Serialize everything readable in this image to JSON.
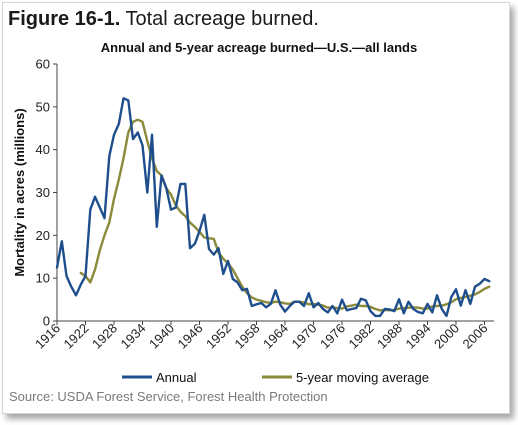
{
  "figure": {
    "number": "Figure 16-1.",
    "caption": "Total acreage burned."
  },
  "source": "Source: USDA Forest Service, Forest Health Protection",
  "chart_data": {
    "type": "line",
    "title": "Annual and 5-year acreage burned—U.S.—all lands",
    "xlabel": "",
    "ylabel": "Mortality in acres (millions)",
    "xlim": [
      1916,
      2008
    ],
    "ylim": [
      0,
      60
    ],
    "y_ticks": [
      0,
      10,
      20,
      30,
      40,
      50,
      60
    ],
    "x_ticks": [
      "1916",
      "1922",
      "1928",
      "1934",
      "1940",
      "1946",
      "1952",
      "1958",
      "1964",
      "1970",
      "1976",
      "1982",
      "1988",
      "1994",
      "2000",
      "2006"
    ],
    "grid": false,
    "legend": "bottom",
    "series": [
      {
        "name": "Annual",
        "color": "#1f4e8c",
        "x": [
          1916,
          1917,
          1918,
          1919,
          1920,
          1921,
          1922,
          1923,
          1924,
          1925,
          1926,
          1927,
          1928,
          1929,
          1930,
          1931,
          1932,
          1933,
          1934,
          1935,
          1936,
          1937,
          1938,
          1939,
          1940,
          1941,
          1942,
          1943,
          1944,
          1945,
          1946,
          1947,
          1948,
          1949,
          1950,
          1951,
          1952,
          1953,
          1954,
          1955,
          1956,
          1957,
          1958,
          1959,
          1960,
          1961,
          1962,
          1963,
          1964,
          1965,
          1966,
          1967,
          1968,
          1969,
          1970,
          1971,
          1972,
          1973,
          1974,
          1975,
          1976,
          1977,
          1978,
          1979,
          1980,
          1981,
          1982,
          1983,
          1984,
          1985,
          1986,
          1987,
          1988,
          1989,
          1990,
          1991,
          1992,
          1993,
          1994,
          1995,
          1996,
          1997,
          1998,
          1999,
          2000,
          2001,
          2002,
          2003,
          2004,
          2005,
          2006,
          2007
        ],
        "values": [
          12.5,
          18.6,
          10.5,
          8,
          6,
          8.5,
          10.5,
          26,
          29,
          26.5,
          24,
          38.5,
          43.5,
          46,
          52,
          51.5,
          42.5,
          44,
          41,
          30,
          43.5,
          22,
          34,
          31,
          26,
          26.5,
          32,
          32,
          17,
          18,
          21,
          24.8,
          16.8,
          15.5,
          17,
          11,
          14,
          9.8,
          9,
          7.2,
          7.5,
          3.5,
          3.9,
          4.2,
          3.2,
          4,
          7.2,
          3.8,
          2.2,
          3.5,
          4.5,
          4.5,
          3.5,
          6.5,
          3.2,
          4.2,
          2.8,
          2,
          3.5,
          1.8,
          5,
          2.5,
          2.8,
          3,
          5.2,
          4.8,
          2.3,
          1.2,
          1.2,
          2.8,
          2.7,
          2.3,
          5.1,
          1.8,
          4.5,
          2.8,
          2.1,
          1.8,
          4,
          2,
          6,
          2.8,
          1.2,
          5.6,
          7.4,
          3.6,
          7.2,
          4,
          8,
          8.7,
          9.8,
          9.3
        ]
      },
      {
        "name": "5-year moving average",
        "color": "#8a8a3a",
        "x": [
          1921,
          1922,
          1923,
          1924,
          1925,
          1926,
          1927,
          1928,
          1929,
          1930,
          1931,
          1932,
          1933,
          1934,
          1935,
          1936,
          1937,
          1938,
          1939,
          1940,
          1941,
          1942,
          1943,
          1944,
          1945,
          1946,
          1947,
          1948,
          1949,
          1950,
          1951,
          1952,
          1953,
          1954,
          1955,
          1956,
          1957,
          1958,
          1959,
          1960,
          1961,
          1962,
          1963,
          1964,
          1965,
          1966,
          1967,
          1968,
          1969,
          1970,
          1971,
          1972,
          1973,
          1974,
          1975,
          1976,
          1977,
          1978,
          1979,
          1980,
          1981,
          1982,
          1983,
          1984,
          1985,
          1986,
          1987,
          1988,
          1989,
          1990,
          1991,
          1992,
          1993,
          1994,
          1995,
          1996,
          1997,
          1998,
          1999,
          2000,
          2001,
          2002,
          2003,
          2004,
          2005,
          2006,
          2007
        ],
        "values": [
          11.2,
          10.5,
          9,
          12,
          16.5,
          20,
          23,
          28.5,
          33,
          38,
          44,
          46.5,
          47,
          46.5,
          42,
          38,
          35,
          34,
          31,
          29.5,
          27,
          25.5,
          24.5,
          23,
          22,
          20.8,
          19.5,
          19.3,
          19.2,
          16,
          14.5,
          13.5,
          12,
          10,
          8,
          6.5,
          5.5,
          5,
          4.7,
          4.4,
          4.2,
          4.5,
          4.4,
          4.1,
          4,
          4.5,
          4.5,
          4.3,
          3.9,
          4,
          3.8,
          3.6,
          3.1,
          3.2,
          3,
          2.9,
          3.4,
          3.6,
          3.8,
          3.5,
          3.5,
          3.3,
          2.8,
          2.5,
          2.6,
          2.5,
          2.6,
          2.9,
          3,
          3.1,
          3.2,
          3.1,
          2.9,
          2.9,
          3.4,
          3.5,
          3.6,
          3.9,
          4.4,
          5.1,
          5.4,
          5.6,
          5.9,
          6.2,
          6.8,
          7.5,
          8
        ]
      }
    ]
  }
}
